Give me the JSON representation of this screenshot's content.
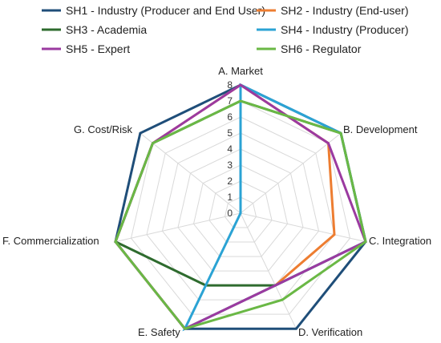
{
  "chart_data": {
    "type": "radar",
    "axes": [
      "A. Market",
      "B. Development",
      "C. Integration",
      "D. Verification",
      "E. Safety",
      "F. Commercialization",
      "G. Cost/Risk"
    ],
    "rlim": [
      0,
      8
    ],
    "ticks": [
      "0",
      "1",
      "2",
      "3",
      "4",
      "5",
      "6",
      "7",
      "8"
    ],
    "grid": true,
    "legend": "top",
    "series": [
      {
        "name": "SH1 - Industry (Producer and End User)",
        "color": "#1F4E79",
        "values": [
          8,
          8,
          8,
          8,
          8,
          8,
          8
        ]
      },
      {
        "name": "SH2 - Industry (End-user)",
        "color": "#ED7D31",
        "values": [
          8,
          7,
          6,
          5,
          8,
          8,
          7
        ]
      },
      {
        "name": "SH3 - Academia",
        "color": "#2E6B2E",
        "values": [
          7,
          8,
          8,
          5,
          5,
          8,
          7
        ]
      },
      {
        "name": "SH4 - Industry (Producer)",
        "color": "#2BA3D4",
        "values": [
          8,
          8,
          8,
          5,
          8,
          0,
          0
        ]
      },
      {
        "name": "SH5 - Expert",
        "color": "#9B3AA0",
        "values": [
          8,
          7,
          8,
          5,
          8,
          8,
          7
        ]
      },
      {
        "name": "SH6 - Regulator",
        "color": "#6AB845",
        "values": [
          7,
          8,
          8,
          6,
          8,
          8,
          7
        ]
      }
    ]
  }
}
